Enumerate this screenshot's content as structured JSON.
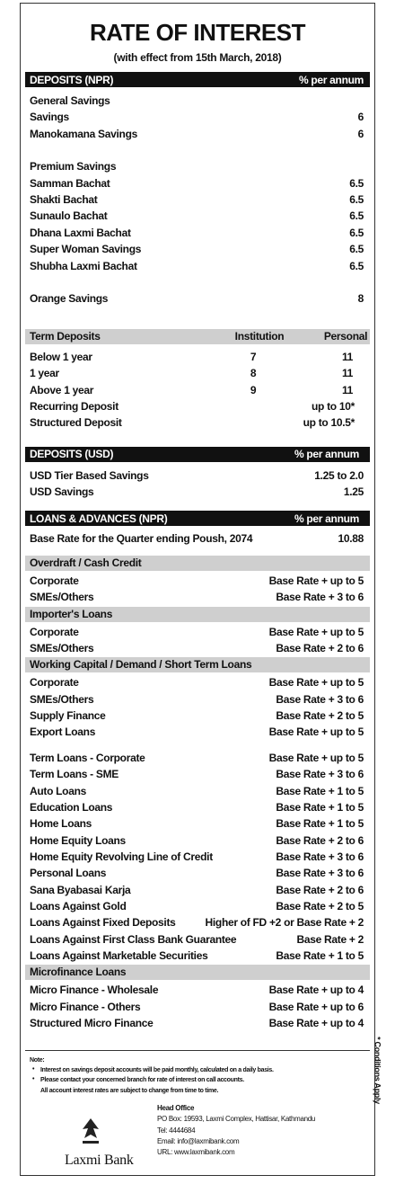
{
  "title": "RATE OF INTEREST",
  "subtitle": "(with effect from 15th March, 2018)",
  "deposits_npr": {
    "header": [
      "DEPOSITS (NPR)",
      "% per annum"
    ],
    "groups": [
      {
        "title": "General Savings",
        "rows": [
          [
            "Savings",
            "6"
          ],
          [
            "Manokamana Savings",
            "6"
          ]
        ]
      },
      {
        "title": "Premium Savings",
        "rows": [
          [
            "Samman Bachat",
            "6.5"
          ],
          [
            "Shakti Bachat",
            "6.5"
          ],
          [
            "Sunaulo Bachat",
            "6.5"
          ],
          [
            "Dhana Laxmi Bachat",
            "6.5"
          ],
          [
            "Super Woman Savings",
            "6.5"
          ],
          [
            "Shubha Laxmi Bachat",
            "6.5"
          ]
        ]
      },
      {
        "title": "Orange Savings",
        "value": "8"
      }
    ]
  },
  "term_deposits": {
    "header": [
      "Term Deposits",
      "Institution",
      "Personal"
    ],
    "rows": [
      [
        "Below 1 year",
        "7",
        "11"
      ],
      [
        "1 year",
        "8",
        "11"
      ],
      [
        "Above 1 year",
        "9",
        "11"
      ],
      [
        "Recurring Deposit",
        "up to 10*"
      ],
      [
        "Structured Deposit",
        "up to 10.5*"
      ]
    ]
  },
  "deposits_usd": {
    "header": [
      "DEPOSITS (USD)",
      "% per annum"
    ],
    "rows": [
      [
        "USD Tier Based Savings",
        "1.25 to 2.0"
      ],
      [
        "USD Savings",
        "1.25"
      ]
    ]
  },
  "loans": {
    "header": [
      "LOANS & ADVANCES (NPR)",
      "% per annum"
    ],
    "base_rate": [
      "Base Rate for the Quarter ending Poush, 2074",
      "10.88"
    ],
    "groups": [
      {
        "title": "Overdraft / Cash Credit",
        "rows": [
          [
            "Corporate",
            "Base Rate + up to 5"
          ],
          [
            "SMEs/Others",
            "Base Rate + 3 to 6"
          ]
        ]
      },
      {
        "title": "Importer's Loans",
        "rows": [
          [
            "Corporate",
            "Base Rate + up to 5"
          ],
          [
            "SMEs/Others",
            "Base Rate + 2 to 6"
          ]
        ]
      },
      {
        "title": "Working Capital / Demand / Short Term Loans",
        "rows": [
          [
            "Corporate",
            "Base Rate + up to 5"
          ],
          [
            "SMEs/Others",
            "Base Rate + 3 to 6"
          ],
          [
            "Supply Finance",
            "Base Rate + 2 to 5"
          ],
          [
            "Export Loans",
            "Base Rate + up to 5"
          ]
        ]
      },
      {
        "rows": [
          [
            "Term Loans - Corporate",
            "Base Rate + up to 5"
          ],
          [
            "Term Loans - SME",
            "Base Rate + 3 to 6"
          ],
          [
            "Auto Loans",
            "Base Rate + 1 to 5"
          ],
          [
            "Education Loans",
            "Base Rate + 1 to 5"
          ],
          [
            "Home Loans",
            "Base Rate + 1 to 5"
          ],
          [
            "Home Equity Loans",
            "Base Rate + 2 to 6"
          ],
          [
            "Home Equity Revolving Line of Credit",
            "Base Rate + 3 to 6"
          ],
          [
            "Personal Loans",
            "Base Rate + 3 to 6"
          ],
          [
            "Sana Byabasai Karja",
            "Base Rate + 2 to 6"
          ],
          [
            "Loans Against Gold",
            "Base Rate + 2 to 5"
          ],
          [
            "Loans Against Fixed Deposits",
            "Higher of FD +2 or Base Rate + 2"
          ],
          [
            "Loans Against First Class Bank Guarantee",
            "Base Rate + 2"
          ],
          [
            "Loans Against Marketable Securities",
            "Base Rate + 1 to 5"
          ]
        ]
      },
      {
        "title": "Microfinance Loans",
        "rows": [
          [
            "Micro Finance - Wholesale",
            "Base Rate + up to 4"
          ],
          [
            "Micro Finance - Others",
            "Base Rate + up to 6"
          ],
          [
            "Structured Micro Finance",
            "Base Rate + up to 4"
          ]
        ]
      }
    ]
  },
  "notes": {
    "title": "Note:",
    "items": [
      "Interest on savings deposit accounts will be paid monthly, calculated on a daily basis.",
      "Please contact your concerned branch for rate of interest on call accounts."
    ],
    "footer": "All account interest rates are subject to change from time to time."
  },
  "conditions": "* Conditions Apply",
  "bank": "Laxmi Bank",
  "head_office": [
    "Head Office",
    "PO Box: 19593, Laxmi Complex, Hattisar, Kathmandu",
    "Tel: 4444684",
    "Email: info@laxmibank.com",
    "URL: www.laxmibank.com"
  ]
}
